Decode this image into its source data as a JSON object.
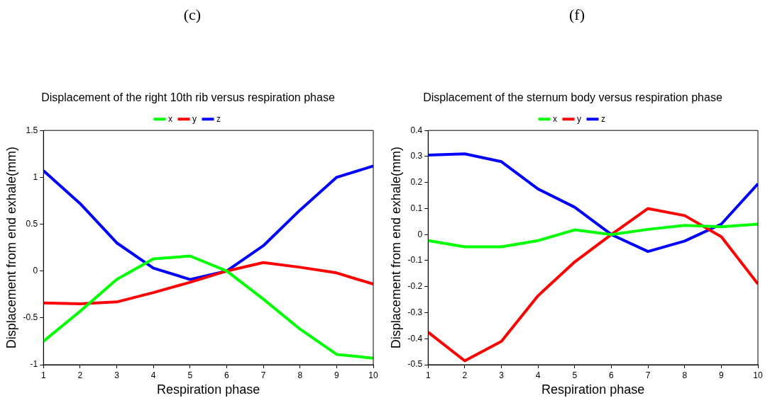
{
  "chart_data": [
    {
      "type": "line",
      "title": "Displacement of the right 10th rib versus respiration phase",
      "annotations": [
        "(c)"
      ],
      "xlabel": "Respiration phase",
      "ylabel": "Displacement from end exhale(mm)",
      "x": [
        1,
        2,
        3,
        4,
        5,
        6,
        7,
        8,
        9,
        10
      ],
      "xlim": [
        1,
        10
      ],
      "xticks": [
        1,
        2,
        3,
        4,
        5,
        6,
        7,
        8,
        9,
        10
      ],
      "ylim": [
        -1,
        1.5
      ],
      "yticks": [
        -1,
        -0.5,
        0,
        0.5,
        1,
        1.5
      ],
      "grid": false,
      "legend": "top",
      "marker": "none",
      "line_style": "solid",
      "series": [
        {
          "name": "x",
          "color": "#00ff00",
          "values": [
            -0.75,
            -0.43,
            -0.09,
            0.13,
            0.16,
            0.0,
            -0.3,
            -0.62,
            -0.89,
            -0.93
          ]
        },
        {
          "name": "y",
          "color": "#ff0000",
          "values": [
            -0.34,
            -0.35,
            -0.33,
            -0.23,
            -0.12,
            0.0,
            0.09,
            0.04,
            -0.02,
            -0.14
          ]
        },
        {
          "name": "z",
          "color": "#0000ff",
          "values": [
            1.07,
            0.72,
            0.3,
            0.03,
            -0.09,
            0.0,
            0.27,
            0.65,
            1.0,
            1.12
          ]
        }
      ]
    },
    {
      "type": "line",
      "title": "Displacement of the sternum body versus respiration phase",
      "annotations": [
        "(f)"
      ],
      "xlabel": "Respiration phase",
      "ylabel": "Displacement from end exhale(mm)",
      "x": [
        1,
        2,
        3,
        4,
        5,
        6,
        7,
        8,
        9,
        10
      ],
      "xlim": [
        1,
        10
      ],
      "xticks": [
        1,
        2,
        3,
        4,
        5,
        6,
        7,
        8,
        9,
        10
      ],
      "ylim": [
        -0.5,
        0.4
      ],
      "yticks": [
        -0.5,
        -0.4,
        -0.3,
        -0.2,
        -0.1,
        0,
        0.1,
        0.2,
        0.3,
        0.4
      ],
      "grid": false,
      "legend": "top",
      "marker": "none",
      "line_style": "solid",
      "series": [
        {
          "name": "x",
          "color": "#00ff00",
          "values": [
            -0.023,
            -0.047,
            -0.047,
            -0.023,
            0.018,
            0.0,
            0.02,
            0.035,
            0.03,
            0.04
          ]
        },
        {
          "name": "y",
          "color": "#ff0000",
          "values": [
            -0.375,
            -0.485,
            -0.41,
            -0.235,
            -0.105,
            0.0,
            0.1,
            0.073,
            -0.008,
            -0.19
          ]
        },
        {
          "name": "z",
          "color": "#0000ff",
          "values": [
            0.305,
            0.31,
            0.28,
            0.175,
            0.105,
            0.0,
            -0.065,
            -0.025,
            0.04,
            0.195
          ]
        }
      ]
    }
  ]
}
